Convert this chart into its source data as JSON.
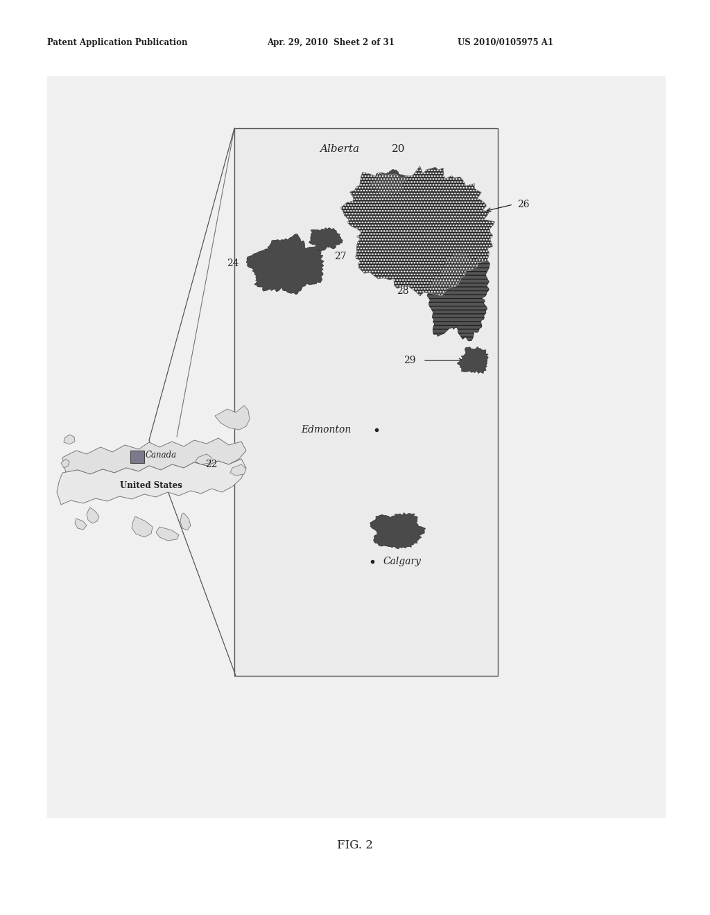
{
  "header_left": "Patent Application Publication",
  "header_mid": "Apr. 29, 2010  Sheet 2 of 31",
  "header_right": "US 2010/0105975 A1",
  "figure_label": "FIG. 2",
  "bg_color": "#ffffff",
  "page_gray": "#f2f2f2",
  "map_interior_color": "#ebebeb",
  "deposit_dark": "#4a4a4a",
  "deposit_hatched": "#555555",
  "border_color": "#555555",
  "text_color": "#222222",
  "label_alberta": "Alberta",
  "label_edmonton": "Edmonton",
  "label_calgary": "Calgary",
  "label_canada": "Canada",
  "label_us": "United States",
  "ref_20": "20",
  "ref_22": "22",
  "ref_24": "24",
  "ref_26": "26",
  "ref_27": "27",
  "ref_28": "28",
  "ref_29": "29",
  "header_fontsize": 8.5,
  "label_fontsize": 11,
  "ref_fontsize": 10,
  "fig_label_fontsize": 12
}
